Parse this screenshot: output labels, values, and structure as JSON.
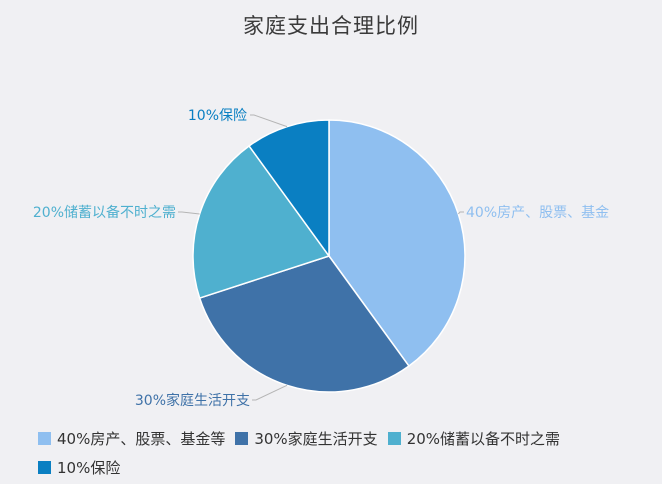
{
  "chart_data": {
    "type": "pie",
    "title": "家庭支出合理比例",
    "slices": [
      {
        "label": "40%房产、股票、基金等",
        "callout": "40%房产、股票、基金",
        "value": 40,
        "color": "#8fbff0"
      },
      {
        "label": "30%家庭生活开支",
        "callout": "30%家庭生活开支",
        "value": 30,
        "color": "#3f72a8"
      },
      {
        "label": "20%储蓄以备不时之需",
        "callout": "20%储蓄以备不时之需",
        "value": 20,
        "color": "#4fb0cf"
      },
      {
        "label": "10%保险",
        "callout": "10%保险",
        "value": 10,
        "color": "#0a7fc2"
      }
    ],
    "legend_placement": "bottom-left"
  }
}
